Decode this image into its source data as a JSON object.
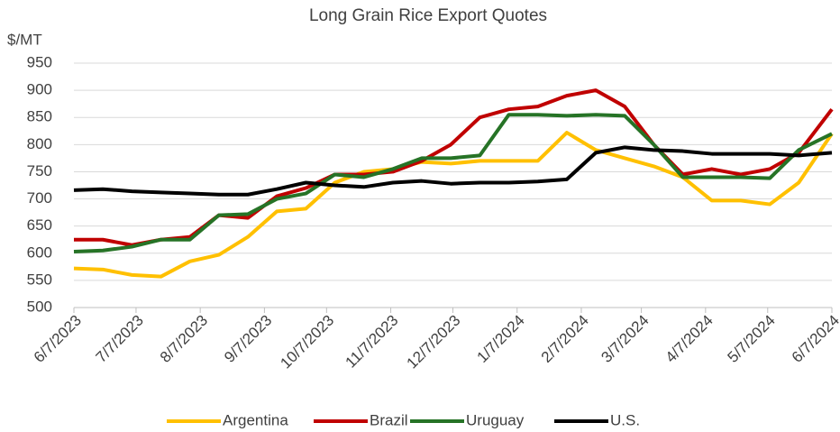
{
  "chart_data": {
    "type": "line",
    "title": "Long Grain Rice Export Quotes",
    "y_label": "$/MT",
    "x": [
      "6/7/2023",
      "6/21/2023",
      "7/5/2023",
      "7/19/2023",
      "8/2/2023",
      "8/16/2023",
      "8/30/2023",
      "9/13/2023",
      "9/27/2023",
      "10/11/2023",
      "10/25/2023",
      "11/8/2023",
      "11/22/2023",
      "12/6/2023",
      "12/20/2023",
      "1/3/2024",
      "1/17/2024",
      "1/31/2024",
      "2/14/2024",
      "2/28/2024",
      "3/13/2024",
      "3/27/2024",
      "4/10/2024",
      "4/24/2024",
      "5/8/2024",
      "5/22/2024",
      "6/7/2024"
    ],
    "xticks": [
      "6/7/2023",
      "7/7/2023",
      "8/7/2023",
      "9/7/2023",
      "10/7/2023",
      "11/7/2023",
      "12/7/2023",
      "1/7/2024",
      "2/7/2024",
      "3/7/2024",
      "4/7/2024",
      "5/7/2024",
      "6/7/2024"
    ],
    "series": [
      {
        "name": "Argentina",
        "color": "#ffc000",
        "values": [
          572,
          570,
          560,
          557,
          585,
          597,
          630,
          677,
          682,
          730,
          750,
          755,
          768,
          765,
          770,
          770,
          770,
          822,
          790,
          775,
          760,
          740,
          697,
          697,
          690,
          730,
          820
        ]
      },
      {
        "name": "Brazil",
        "color": "#c00000",
        "values": [
          625,
          625,
          615,
          625,
          630,
          670,
          665,
          705,
          720,
          745,
          745,
          750,
          770,
          800,
          850,
          865,
          870,
          890,
          900,
          870,
          800,
          745,
          755,
          745,
          755,
          785,
          865
        ]
      },
      {
        "name": "Uruguay",
        "color": "#267326",
        "values": [
          603,
          605,
          612,
          625,
          625,
          670,
          672,
          700,
          710,
          745,
          740,
          755,
          775,
          775,
          780,
          855,
          855,
          853,
          855,
          853,
          800,
          740,
          740,
          740,
          738,
          790,
          820
        ]
      },
      {
        "name": "U.S.",
        "color": "#000000",
        "values": [
          716,
          718,
          714,
          712,
          710,
          708,
          708,
          718,
          730,
          725,
          722,
          730,
          733,
          728,
          730,
          730,
          732,
          736,
          785,
          795,
          790,
          788,
          783,
          783,
          783,
          780,
          785
        ]
      }
    ],
    "ylim": [
      500,
      950
    ],
    "yticks": [
      500,
      550,
      600,
      650,
      700,
      750,
      800,
      850,
      900,
      950
    ],
    "grid": true,
    "legend": "bottom"
  }
}
